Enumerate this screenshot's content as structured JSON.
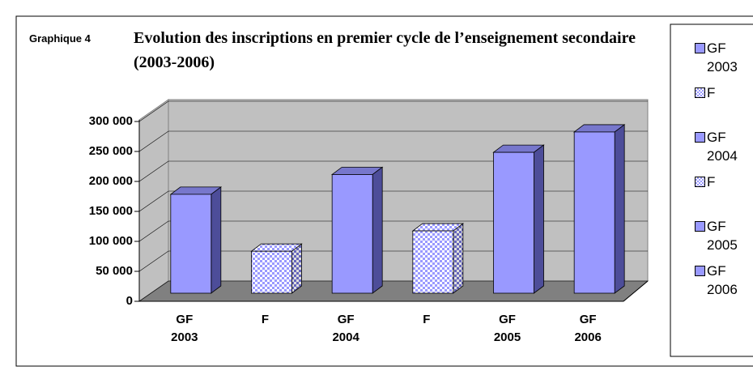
{
  "chart_data": {
    "type": "bar3d",
    "label": "Graphique 4",
    "title": "Evolution des inscriptions en premier cycle de l’enseignement secondaire (2003-2006)",
    "categories": [
      "GF 2003",
      "F",
      "GF 2004",
      "F",
      "GF 2005",
      "GF 2006"
    ],
    "values": [
      165000,
      70000,
      198000,
      104000,
      235000,
      269000
    ],
    "patterned": [
      false,
      true,
      false,
      true,
      false,
      false
    ],
    "color": "#9999ff",
    "ylim": [
      0,
      300000
    ],
    "yticks": [
      0,
      {
        "value": 50000,
        "label": "50 000"
      },
      {
        "value": 100000,
        "label": "100 000"
      },
      {
        "value": 150000,
        "label": "150 000"
      },
      {
        "value": 200000,
        "label": "200 000"
      },
      {
        "value": 250000,
        "label": "250 000"
      },
      {
        "value": 300000,
        "label": "300 000"
      }
    ],
    "grid": true
  }
}
